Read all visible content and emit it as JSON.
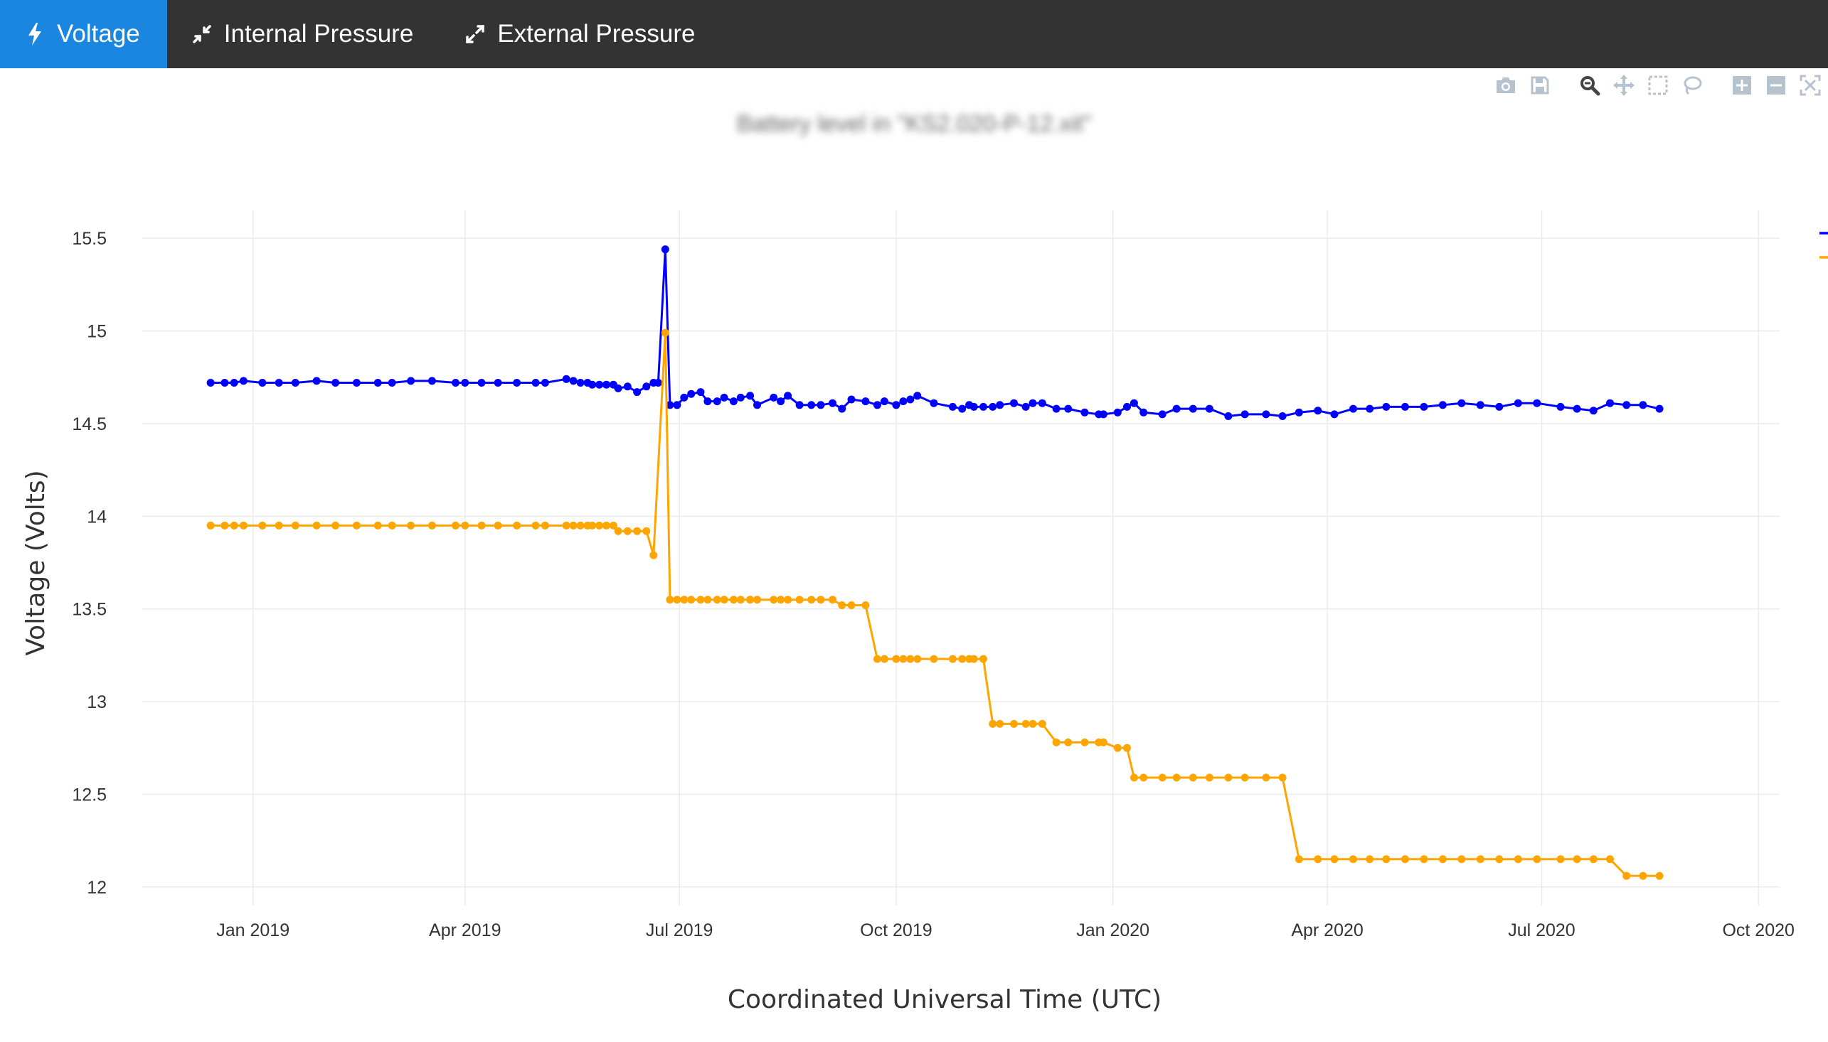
{
  "tabs": [
    {
      "label": "Voltage",
      "icon": "lightning-icon",
      "active": true
    },
    {
      "label": "Internal Pressure",
      "icon": "compress-icon",
      "active": false
    },
    {
      "label": "External Pressure",
      "icon": "expand-icon",
      "active": false
    }
  ],
  "modebar": {
    "icons": [
      "camera-icon",
      "save-icon",
      "zoom-icon",
      "pan-icon",
      "box-select-icon",
      "lasso-icon",
      "zoom-in-icon",
      "zoom-out-icon",
      "autoscale-icon"
    ]
  },
  "colors": {
    "tab_active": "#1a86df",
    "topbar": "#333333",
    "series_blue": "#0000ff",
    "series_orange": "#ffa500"
  },
  "chart_data": {
    "type": "line",
    "title": "Battery level in \"KS2.020-P-12.xit\"",
    "xlabel": "Coordinated Universal Time (UTC)",
    "ylabel": "Voltage (Volts)",
    "xlim": [
      "2018-11-15",
      "2020-10-10"
    ],
    "ylim": [
      11.9,
      15.65
    ],
    "x_ticks": [
      {
        "label": "Jan 2019",
        "date": "2019-01-01"
      },
      {
        "label": "Apr 2019",
        "date": "2019-04-01"
      },
      {
        "label": "Jul 2019",
        "date": "2019-07-01"
      },
      {
        "label": "Oct 2019",
        "date": "2019-10-01"
      },
      {
        "label": "Jan 2020",
        "date": "2020-01-01"
      },
      {
        "label": "Apr 2020",
        "date": "2020-04-01"
      },
      {
        "label": "Jul 2020",
        "date": "2020-07-01"
      },
      {
        "label": "Oct 2020",
        "date": "2020-10-01"
      }
    ],
    "y_ticks": [
      {
        "label": "12",
        "value": 12
      },
      {
        "label": "12.5",
        "value": 12.5
      },
      {
        "label": "13",
        "value": 13
      },
      {
        "label": "13.5",
        "value": 13.5
      },
      {
        "label": "14",
        "value": 14
      },
      {
        "label": "14.5",
        "value": 14.5
      },
      {
        "label": "15",
        "value": 15
      },
      {
        "label": "15.5",
        "value": 15.5
      }
    ],
    "grid": true,
    "legend": "top-right",
    "series": [
      {
        "color": "#0000ff",
        "points": [
          [
            "2018-12-14",
            14.72
          ],
          [
            "2018-12-20",
            14.72
          ],
          [
            "2018-12-24",
            14.72
          ],
          [
            "2018-12-28",
            14.73
          ],
          [
            "2019-01-05",
            14.72
          ],
          [
            "2019-01-12",
            14.72
          ],
          [
            "2019-01-19",
            14.72
          ],
          [
            "2019-01-28",
            14.73
          ],
          [
            "2019-02-05",
            14.72
          ],
          [
            "2019-02-14",
            14.72
          ],
          [
            "2019-02-23",
            14.72
          ],
          [
            "2019-03-01",
            14.72
          ],
          [
            "2019-03-09",
            14.73
          ],
          [
            "2019-03-18",
            14.73
          ],
          [
            "2019-03-28",
            14.72
          ],
          [
            "2019-04-01",
            14.72
          ],
          [
            "2019-04-08",
            14.72
          ],
          [
            "2019-04-15",
            14.72
          ],
          [
            "2019-04-23",
            14.72
          ],
          [
            "2019-05-01",
            14.72
          ],
          [
            "2019-05-05",
            14.72
          ],
          [
            "2019-05-14",
            14.74
          ],
          [
            "2019-05-17",
            14.73
          ],
          [
            "2019-05-20",
            14.72
          ],
          [
            "2019-05-23",
            14.72
          ],
          [
            "2019-05-25",
            14.71
          ],
          [
            "2019-05-28",
            14.71
          ],
          [
            "2019-05-31",
            14.71
          ],
          [
            "2019-06-03",
            14.71
          ],
          [
            "2019-06-05",
            14.69
          ],
          [
            "2019-06-09",
            14.7
          ],
          [
            "2019-06-13",
            14.67
          ],
          [
            "2019-06-17",
            14.7
          ],
          [
            "2019-06-20",
            14.72
          ],
          [
            "2019-06-22",
            14.72
          ],
          [
            "2019-06-25",
            15.44
          ],
          [
            "2019-06-27",
            14.6
          ],
          [
            "2019-06-30",
            14.6
          ],
          [
            "2019-07-03",
            14.64
          ],
          [
            "2019-07-06",
            14.66
          ],
          [
            "2019-07-10",
            14.67
          ],
          [
            "2019-07-13",
            14.62
          ],
          [
            "2019-07-17",
            14.62
          ],
          [
            "2019-07-20",
            14.64
          ],
          [
            "2019-07-24",
            14.62
          ],
          [
            "2019-07-27",
            14.64
          ],
          [
            "2019-07-31",
            14.65
          ],
          [
            "2019-08-03",
            14.6
          ],
          [
            "2019-08-10",
            14.64
          ],
          [
            "2019-08-13",
            14.62
          ],
          [
            "2019-08-16",
            14.65
          ],
          [
            "2019-08-21",
            14.6
          ],
          [
            "2019-08-26",
            14.6
          ],
          [
            "2019-08-30",
            14.6
          ],
          [
            "2019-09-04",
            14.61
          ],
          [
            "2019-09-08",
            14.58
          ],
          [
            "2019-09-12",
            14.63
          ],
          [
            "2019-09-18",
            14.62
          ],
          [
            "2019-09-23",
            14.6
          ],
          [
            "2019-09-26",
            14.62
          ],
          [
            "2019-10-01",
            14.6
          ],
          [
            "2019-10-04",
            14.62
          ],
          [
            "2019-10-07",
            14.63
          ],
          [
            "2019-10-10",
            14.65
          ],
          [
            "2019-10-17",
            14.61
          ],
          [
            "2019-10-25",
            14.59
          ],
          [
            "2019-10-29",
            14.58
          ],
          [
            "2019-11-01",
            14.6
          ],
          [
            "2019-11-03",
            14.59
          ],
          [
            "2019-11-07",
            14.59
          ],
          [
            "2019-11-11",
            14.59
          ],
          [
            "2019-11-14",
            14.6
          ],
          [
            "2019-11-20",
            14.61
          ],
          [
            "2019-11-25",
            14.59
          ],
          [
            "2019-11-28",
            14.61
          ],
          [
            "2019-12-02",
            14.61
          ],
          [
            "2019-12-08",
            14.58
          ],
          [
            "2019-12-13",
            14.58
          ],
          [
            "2019-12-20",
            14.56
          ],
          [
            "2019-12-26",
            14.55
          ],
          [
            "2019-12-28",
            14.55
          ],
          [
            "2020-01-03",
            14.56
          ],
          [
            "2020-01-07",
            14.59
          ],
          [
            "2020-01-10",
            14.61
          ],
          [
            "2020-01-14",
            14.56
          ],
          [
            "2020-01-22",
            14.55
          ],
          [
            "2020-01-28",
            14.58
          ],
          [
            "2020-02-04",
            14.58
          ],
          [
            "2020-02-11",
            14.58
          ],
          [
            "2020-02-19",
            14.54
          ],
          [
            "2020-02-26",
            14.55
          ],
          [
            "2020-03-06",
            14.55
          ],
          [
            "2020-03-13",
            14.54
          ],
          [
            "2020-03-20",
            14.56
          ],
          [
            "2020-03-28",
            14.57
          ],
          [
            "2020-04-04",
            14.55
          ],
          [
            "2020-04-12",
            14.58
          ],
          [
            "2020-04-19",
            14.58
          ],
          [
            "2020-04-26",
            14.59
          ],
          [
            "2020-05-04",
            14.59
          ],
          [
            "2020-05-12",
            14.59
          ],
          [
            "2020-05-20",
            14.6
          ],
          [
            "2020-05-28",
            14.61
          ],
          [
            "2020-06-05",
            14.6
          ],
          [
            "2020-06-13",
            14.59
          ],
          [
            "2020-06-21",
            14.61
          ],
          [
            "2020-06-29",
            14.61
          ],
          [
            "2020-07-09",
            14.59
          ],
          [
            "2020-07-16",
            14.58
          ],
          [
            "2020-07-23",
            14.57
          ],
          [
            "2020-07-30",
            14.61
          ],
          [
            "2020-08-06",
            14.6
          ],
          [
            "2020-08-13",
            14.6
          ],
          [
            "2020-08-20",
            14.58
          ]
        ]
      },
      {
        "color": "#ffa500",
        "points": [
          [
            "2018-12-14",
            13.95
          ],
          [
            "2018-12-20",
            13.95
          ],
          [
            "2018-12-24",
            13.95
          ],
          [
            "2018-12-28",
            13.95
          ],
          [
            "2019-01-05",
            13.95
          ],
          [
            "2019-01-12",
            13.95
          ],
          [
            "2019-01-19",
            13.95
          ],
          [
            "2019-01-28",
            13.95
          ],
          [
            "2019-02-05",
            13.95
          ],
          [
            "2019-02-14",
            13.95
          ],
          [
            "2019-02-23",
            13.95
          ],
          [
            "2019-03-01",
            13.95
          ],
          [
            "2019-03-09",
            13.95
          ],
          [
            "2019-03-18",
            13.95
          ],
          [
            "2019-03-28",
            13.95
          ],
          [
            "2019-04-01",
            13.95
          ],
          [
            "2019-04-08",
            13.95
          ],
          [
            "2019-04-15",
            13.95
          ],
          [
            "2019-04-23",
            13.95
          ],
          [
            "2019-05-01",
            13.95
          ],
          [
            "2019-05-05",
            13.95
          ],
          [
            "2019-05-14",
            13.95
          ],
          [
            "2019-05-17",
            13.95
          ],
          [
            "2019-05-20",
            13.95
          ],
          [
            "2019-05-23",
            13.95
          ],
          [
            "2019-05-25",
            13.95
          ],
          [
            "2019-05-28",
            13.95
          ],
          [
            "2019-05-31",
            13.95
          ],
          [
            "2019-06-03",
            13.95
          ],
          [
            "2019-06-05",
            13.92
          ],
          [
            "2019-06-09",
            13.92
          ],
          [
            "2019-06-13",
            13.92
          ],
          [
            "2019-06-17",
            13.92
          ],
          [
            "2019-06-20",
            13.79
          ],
          [
            "2019-06-25",
            14.99
          ],
          [
            "2019-06-27",
            13.55
          ],
          [
            "2019-06-30",
            13.55
          ],
          [
            "2019-07-03",
            13.55
          ],
          [
            "2019-07-06",
            13.55
          ],
          [
            "2019-07-10",
            13.55
          ],
          [
            "2019-07-13",
            13.55
          ],
          [
            "2019-07-17",
            13.55
          ],
          [
            "2019-07-20",
            13.55
          ],
          [
            "2019-07-24",
            13.55
          ],
          [
            "2019-07-27",
            13.55
          ],
          [
            "2019-07-31",
            13.55
          ],
          [
            "2019-08-03",
            13.55
          ],
          [
            "2019-08-10",
            13.55
          ],
          [
            "2019-08-13",
            13.55
          ],
          [
            "2019-08-16",
            13.55
          ],
          [
            "2019-08-21",
            13.55
          ],
          [
            "2019-08-26",
            13.55
          ],
          [
            "2019-08-30",
            13.55
          ],
          [
            "2019-09-04",
            13.55
          ],
          [
            "2019-09-08",
            13.52
          ],
          [
            "2019-09-12",
            13.52
          ],
          [
            "2019-09-18",
            13.52
          ],
          [
            "2019-09-23",
            13.23
          ],
          [
            "2019-09-26",
            13.23
          ],
          [
            "2019-10-01",
            13.23
          ],
          [
            "2019-10-04",
            13.23
          ],
          [
            "2019-10-07",
            13.23
          ],
          [
            "2019-10-10",
            13.23
          ],
          [
            "2019-10-17",
            13.23
          ],
          [
            "2019-10-25",
            13.23
          ],
          [
            "2019-10-29",
            13.23
          ],
          [
            "2019-11-01",
            13.23
          ],
          [
            "2019-11-03",
            13.23
          ],
          [
            "2019-11-07",
            13.23
          ],
          [
            "2019-11-11",
            12.88
          ],
          [
            "2019-11-14",
            12.88
          ],
          [
            "2019-11-20",
            12.88
          ],
          [
            "2019-11-25",
            12.88
          ],
          [
            "2019-11-28",
            12.88
          ],
          [
            "2019-12-02",
            12.88
          ],
          [
            "2019-12-08",
            12.78
          ],
          [
            "2019-12-13",
            12.78
          ],
          [
            "2019-12-20",
            12.78
          ],
          [
            "2019-12-26",
            12.78
          ],
          [
            "2019-12-28",
            12.78
          ],
          [
            "2020-01-03",
            12.75
          ],
          [
            "2020-01-07",
            12.75
          ],
          [
            "2020-01-10",
            12.59
          ],
          [
            "2020-01-14",
            12.59
          ],
          [
            "2020-01-22",
            12.59
          ],
          [
            "2020-01-28",
            12.59
          ],
          [
            "2020-02-04",
            12.59
          ],
          [
            "2020-02-11",
            12.59
          ],
          [
            "2020-02-19",
            12.59
          ],
          [
            "2020-02-26",
            12.59
          ],
          [
            "2020-03-06",
            12.59
          ],
          [
            "2020-03-13",
            12.59
          ],
          [
            "2020-03-20",
            12.15
          ],
          [
            "2020-03-28",
            12.15
          ],
          [
            "2020-04-04",
            12.15
          ],
          [
            "2020-04-12",
            12.15
          ],
          [
            "2020-04-19",
            12.15
          ],
          [
            "2020-04-26",
            12.15
          ],
          [
            "2020-05-04",
            12.15
          ],
          [
            "2020-05-12",
            12.15
          ],
          [
            "2020-05-20",
            12.15
          ],
          [
            "2020-05-28",
            12.15
          ],
          [
            "2020-06-05",
            12.15
          ],
          [
            "2020-06-13",
            12.15
          ],
          [
            "2020-06-21",
            12.15
          ],
          [
            "2020-06-29",
            12.15
          ],
          [
            "2020-07-09",
            12.15
          ],
          [
            "2020-07-16",
            12.15
          ],
          [
            "2020-07-23",
            12.15
          ],
          [
            "2020-07-30",
            12.15
          ],
          [
            "2020-08-06",
            12.06
          ],
          [
            "2020-08-13",
            12.06
          ],
          [
            "2020-08-20",
            12.06
          ]
        ]
      }
    ]
  }
}
